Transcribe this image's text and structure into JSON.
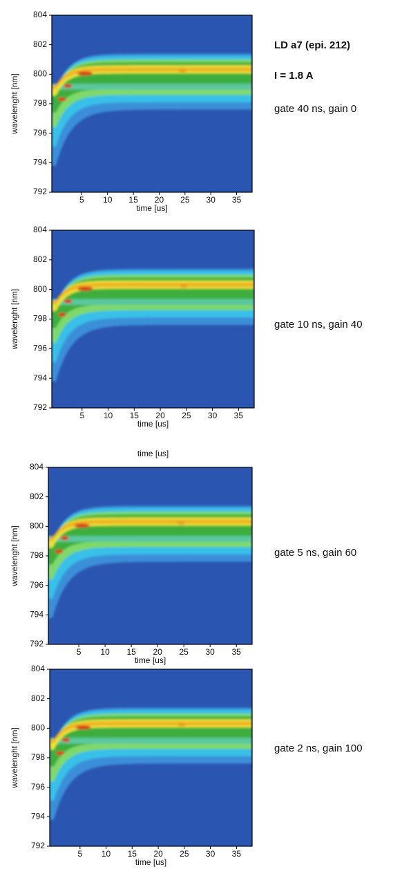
{
  "chart_data": [
    {
      "type": "heatmap",
      "xlabel": "time  [us]",
      "ylabel": "wavelenght  [nm]",
      "xlim": [
        -0.8,
        38
      ],
      "ylim": [
        792,
        804
      ],
      "xticks": [
        5,
        10,
        15,
        20,
        25,
        30,
        35
      ],
      "yticks": [
        792,
        794,
        796,
        798,
        800,
        802,
        804
      ],
      "annotations": [
        "LD  a7 (epi. 212)",
        "I = 1.8 A",
        "gate 40 ns,  gain 0"
      ]
    },
    {
      "type": "heatmap",
      "xlabel": "time  [us]",
      "ylabel": "wavelenght  [nm]",
      "xlim": [
        -0.8,
        38
      ],
      "ylim": [
        792,
        804
      ],
      "xticks": [
        5,
        10,
        15,
        20,
        25,
        30,
        35
      ],
      "yticks": [
        792,
        794,
        796,
        798,
        800,
        802,
        804
      ],
      "annotations": [
        "gate 10 ns,  gain 40"
      ],
      "footnote": "time  [us]"
    },
    {
      "type": "heatmap",
      "xlabel": "time  [us]",
      "ylabel": "wavelenght  [nm]",
      "xlim": [
        -0.8,
        38
      ],
      "ylim": [
        792,
        804
      ],
      "xticks": [
        5,
        10,
        15,
        20,
        25,
        30,
        35
      ],
      "yticks": [
        792,
        794,
        796,
        798,
        800,
        802,
        804
      ],
      "annotations": [
        "gate 5 ns,  gain 60"
      ]
    },
    {
      "type": "heatmap",
      "xlabel": "time  [us]",
      "ylabel": "wavelenght  [nm]",
      "xlim": [
        -0.8,
        38
      ],
      "ylim": [
        792,
        804
      ],
      "xticks": [
        5,
        10,
        15,
        20,
        25,
        30,
        35
      ],
      "yticks": [
        792,
        794,
        796,
        798,
        800,
        802,
        804
      ],
      "annotations": [
        "gate 2 ns,  gain 100"
      ]
    }
  ]
}
